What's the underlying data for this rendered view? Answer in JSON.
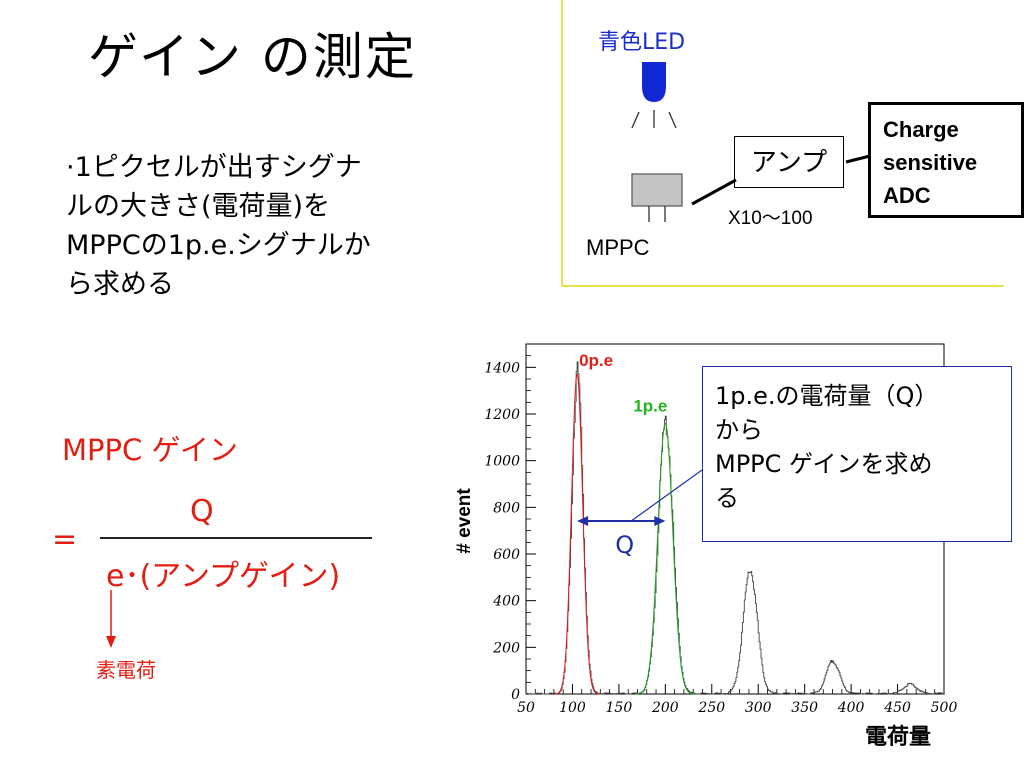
{
  "title": "ゲイン の測定",
  "bullet_lines": [
    "·1ピクセルが出すシグナ",
    "ルの大きさ(電荷量)を",
    "MPPCの1p.e.シグナルか",
    "ら求める"
  ],
  "gain_formula": {
    "label_prefix": "MPPC",
    "label_suffix": " ゲイン",
    "equals": "=",
    "numerator": "Q",
    "denominator": "e･(アンプゲイン)",
    "elementary_charge_label": "素電荷"
  },
  "setup": {
    "led_label": "青色LED",
    "amp_label": "アンプ",
    "amp_gain": "X10～100",
    "adc_lines": [
      "Charge",
      "sensitive",
      "ADC"
    ],
    "mppc_label": "MPPC",
    "colors": {
      "led": "#1128d4",
      "mppc": "#c4c4c4",
      "border": "#e8e04a"
    }
  },
  "note_lines": [
    "1p.e.の電荷量（Q）",
    "から",
    "MPPC ゲインを求め",
    "る"
  ],
  "chart_data": {
    "type": "line",
    "xlabel": "電荷量",
    "ylabel": "# event",
    "xlim": [
      50,
      500
    ],
    "ylim": [
      0,
      1500
    ],
    "xticks": [
      50,
      100,
      150,
      200,
      250,
      300,
      350,
      400,
      450,
      500
    ],
    "yticks": [
      0,
      200,
      400,
      600,
      800,
      1000,
      1200,
      1400
    ],
    "peaks": [
      {
        "label": "0p.e",
        "x": 105,
        "y": 1370,
        "sigma": 6,
        "label_color": "#e0201a",
        "fit_color": "#e0201a"
      },
      {
        "label": "1p.e",
        "x": 200,
        "y": 1160,
        "sigma": 8,
        "label_color": "#22b31e",
        "fit_color": "#22a31e"
      },
      {
        "label": "",
        "x": 291,
        "y": 530,
        "sigma": 7.5
      },
      {
        "label": "",
        "x": 380,
        "y": 140,
        "sigma": 7
      },
      {
        "label": "",
        "x": 463,
        "y": 40,
        "sigma": 7
      }
    ],
    "q_label": "Q",
    "q_arrow_color": "#1f2ea6"
  }
}
